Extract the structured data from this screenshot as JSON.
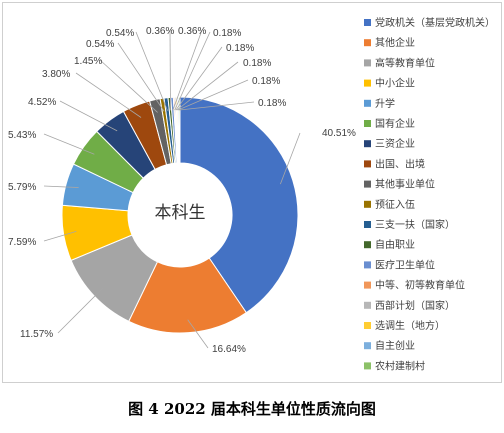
{
  "chart_data": {
    "type": "pie",
    "variant": "donut",
    "center_label": "本科生",
    "legend_position": "right",
    "categories": [
      "党政机关（基层党政机关）",
      "其他企业",
      "高等教育单位",
      "中小企业",
      "升学",
      "国有企业",
      "三资企业",
      "出国、出境",
      "其他事业单位",
      "预征入伍",
      "三支一扶（国家）",
      "自由职业",
      "医疗卫生单位",
      "中等、初等教育单位",
      "西部计划（国家）",
      "选调生（地方）",
      "自主创业",
      "农村建制村"
    ],
    "values": [
      40.51,
      16.64,
      11.57,
      7.59,
      5.79,
      5.43,
      4.52,
      3.8,
      1.45,
      0.54,
      0.54,
      0.36,
      0.36,
      0.18,
      0.18,
      0.18,
      0.18,
      0.18
    ],
    "labels": [
      "40.51%",
      "16.64%",
      "11.57%",
      "7.59%",
      "5.79%",
      "5.43%",
      "4.52%",
      "3.80%",
      "1.45%",
      "0.54%",
      "0.54%",
      "0.36%",
      "0.36%",
      "0.18%",
      "0.18%",
      "0.18%",
      "0.18%",
      "0.18%"
    ],
    "colors": [
      "#4472c4",
      "#ed7d31",
      "#a5a5a5",
      "#ffc000",
      "#5b9bd5",
      "#70ad47",
      "#264478",
      "#9e480e",
      "#636363",
      "#997300",
      "#255e91",
      "#43682b",
      "#698ed0",
      "#f1975a",
      "#b7b7b7",
      "#ffcd33",
      "#7cafdd",
      "#8cc168"
    ]
  },
  "caption": "图 4 2022 届本科生单位性质流向图"
}
